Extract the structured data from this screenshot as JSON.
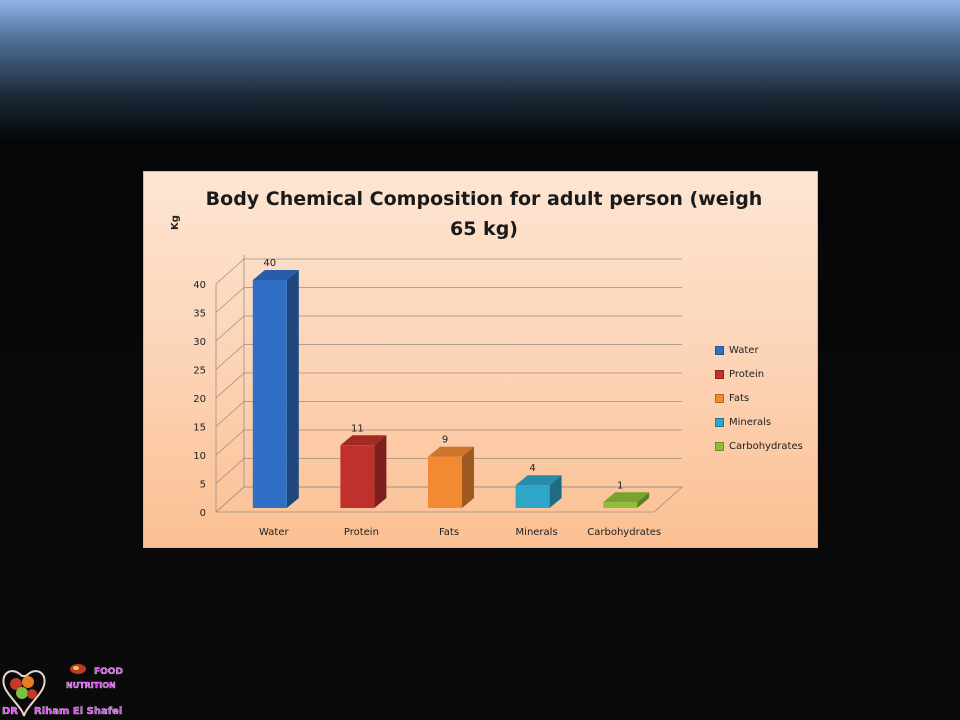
{
  "chart_data": {
    "type": "bar",
    "title": "Body Chemical Composition for adult person (weigh 65 kg)",
    "title_lines": [
      "Body Chemical Composition for adult person (weigh",
      "65 kg)"
    ],
    "ylabel": "Kg",
    "xlabel": "",
    "categories": [
      "Water",
      "Protein",
      "Fats",
      "Minerals",
      "Carbohydrates"
    ],
    "values": [
      40,
      11,
      9,
      4,
      1
    ],
    "data_labels": [
      "40",
      "11",
      "9",
      "4",
      "1"
    ],
    "ylim": [
      0,
      40
    ],
    "yticks": [
      "0",
      "5",
      "10",
      "15",
      "20",
      "25",
      "30",
      "35",
      "40"
    ],
    "grid": true,
    "legend_position": "right",
    "legend": [
      "Water",
      "Protein",
      "Fats",
      "Minerals",
      "Carbohydrates"
    ],
    "colors": [
      "#2f6fc6",
      "#c0302c",
      "#f18a32",
      "#2fa6c8",
      "#8fbe3a"
    ]
  },
  "logo": {
    "text_lines": [
      "FOOD",
      "NUTRITION",
      "DR",
      "Riham El Shafei"
    ]
  }
}
